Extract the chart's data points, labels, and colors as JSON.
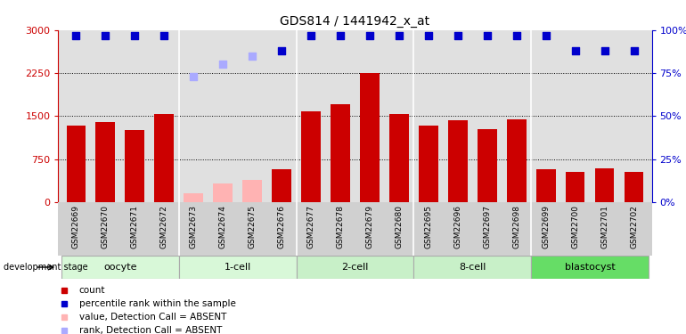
{
  "title": "GDS814 / 1441942_x_at",
  "samples": [
    "GSM22669",
    "GSM22670",
    "GSM22671",
    "GSM22672",
    "GSM22673",
    "GSM22674",
    "GSM22675",
    "GSM22676",
    "GSM22677",
    "GSM22678",
    "GSM22679",
    "GSM22680",
    "GSM22695",
    "GSM22696",
    "GSM22697",
    "GSM22698",
    "GSM22699",
    "GSM22700",
    "GSM22701",
    "GSM22702"
  ],
  "bar_values": [
    1330,
    1390,
    1250,
    1530,
    null,
    null,
    null,
    580,
    1590,
    1700,
    2250,
    1530,
    1340,
    1420,
    1270,
    1450,
    580,
    530,
    590,
    530
  ],
  "absent_values": [
    null,
    null,
    null,
    null,
    150,
    330,
    380,
    null,
    null,
    null,
    null,
    null,
    null,
    null,
    null,
    null,
    null,
    null,
    null,
    null
  ],
  "rank_values": [
    97,
    97,
    97,
    97,
    null,
    null,
    null,
    88,
    97,
    97,
    97,
    97,
    97,
    97,
    97,
    97,
    97,
    88,
    88,
    88
  ],
  "absent_rank_values": [
    null,
    null,
    null,
    null,
    73,
    80,
    85,
    null,
    null,
    null,
    null,
    null,
    null,
    null,
    null,
    null,
    null,
    null,
    null,
    null
  ],
  "groups": [
    {
      "label": "oocyte",
      "start": 0,
      "end": 3
    },
    {
      "label": "1-cell",
      "start": 4,
      "end": 7
    },
    {
      "label": "2-cell",
      "start": 8,
      "end": 11
    },
    {
      "label": "8-cell",
      "start": 12,
      "end": 15
    },
    {
      "label": "blastocyst",
      "start": 16,
      "end": 19
    }
  ],
  "bar_color": "#cc0000",
  "absent_bar_color": "#ffb3b3",
  "rank_color": "#0000cc",
  "absent_rank_color": "#aaaaff",
  "ylim_left": [
    0,
    3000
  ],
  "ylim_right": [
    0,
    100
  ],
  "yticks_left": [
    0,
    750,
    1500,
    2250,
    3000
  ],
  "yticks_right": [
    0,
    25,
    50,
    75,
    100
  ],
  "grid_lines": [
    750,
    1500,
    2250
  ],
  "plot_bg_color": "#e0e0e0",
  "xtick_bg_color": "#d0d0d0",
  "group_colors_list": [
    "#d8f5d8",
    "#d8f5d8",
    "#c0efc0",
    "#c0efc0",
    "#55cc55"
  ],
  "dev_label": "development stage",
  "legend_items": [
    {
      "color": "#cc0000",
      "label": "count"
    },
    {
      "color": "#0000cc",
      "label": "percentile rank within the sample"
    },
    {
      "color": "#ffb3b3",
      "label": "value, Detection Call = ABSENT"
    },
    {
      "color": "#aaaaff",
      "label": "rank, Detection Call = ABSENT"
    }
  ]
}
